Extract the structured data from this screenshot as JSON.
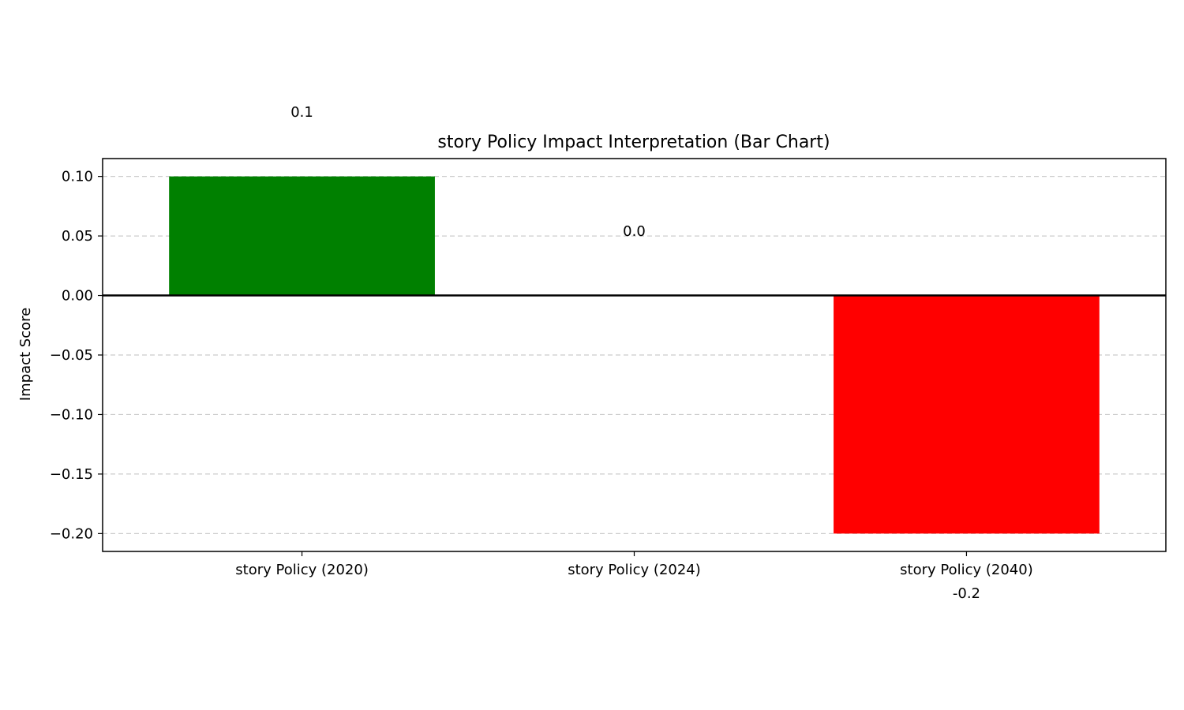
{
  "chart_data": {
    "type": "bar",
    "title": "story Policy Impact Interpretation (Bar Chart)",
    "xlabel": "",
    "ylabel": "Impact Score",
    "categories": [
      "story Policy (2020)",
      "story Policy (2024)",
      "story Policy (2040)"
    ],
    "values": [
      0.1,
      0.0,
      -0.2
    ],
    "value_labels": [
      "0.1",
      "0.0",
      "-0.2"
    ],
    "bar_colors": [
      "#008000",
      "#808080",
      "#ff0000"
    ],
    "ylim": [
      -0.215,
      0.115
    ],
    "yticks": [
      0.1,
      0.05,
      0.0,
      -0.05,
      -0.1,
      -0.15,
      -0.2
    ],
    "ytick_labels": [
      "0.10",
      "0.05",
      "0.00",
      "−0.05",
      "−0.10",
      "−0.15",
      "−0.20"
    ],
    "grid": "y-dashed",
    "zero_line": true,
    "legend": "none"
  }
}
